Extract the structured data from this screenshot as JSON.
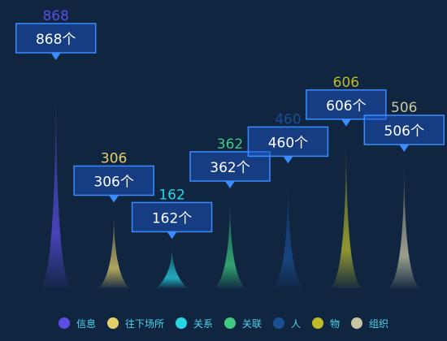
{
  "chart_data": {
    "type": "bar",
    "categories": [
      "信息",
      "往下场所",
      "关系",
      "关联",
      "人",
      "物",
      "组织"
    ],
    "values": [
      868,
      306,
      162,
      362,
      460,
      606,
      506
    ],
    "tooltip_labels": [
      "868个",
      "306个",
      "162个",
      "362个",
      "460个",
      "606个",
      "506个"
    ],
    "colors": [
      "#5b4de0",
      "#e4d06a",
      "#27d6e4",
      "#3fca7e",
      "#1c4f92",
      "#bdbb2a",
      "#c9c6a3"
    ],
    "legend_position": "bottom",
    "grid": false
  },
  "legend": {
    "items": [
      {
        "label": "信息",
        "color": "#5b4de0"
      },
      {
        "label": "往下场所",
        "color": "#e4d06a"
      },
      {
        "label": "关系",
        "color": "#27d6e4"
      },
      {
        "label": "关联",
        "color": "#3fca7e"
      },
      {
        "label": "人",
        "color": "#1c4f92"
      },
      {
        "label": "物",
        "color": "#bdbb2a"
      },
      {
        "label": "组织",
        "color": "#c9c6a3"
      }
    ]
  }
}
